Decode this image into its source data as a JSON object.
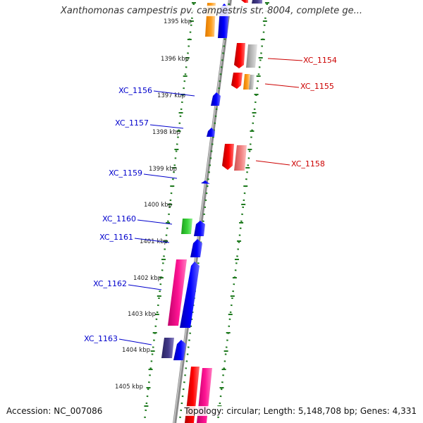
{
  "title": "Xanthomonas campestris pv. campestris str. 8004, complete ge...",
  "accession_label": "Accession: NC_007086",
  "summary_label": "Topology: circular; Length: 5,148,708 bp; Genes: 4,331",
  "colors": {
    "backbone": "#8a8a8a",
    "ring_dots": "#1f7a1f",
    "label_plus": "#cc0000",
    "label_minus": "#0000cc",
    "tick_text": "#222222"
  },
  "tick_labels": [
    "1395 kbp",
    "1396 kbp",
    "1397 kbp",
    "1398 kbp",
    "1399 kbp",
    "1400 kbp",
    "1401 kbp",
    "1402 kbp",
    "1403 kbp",
    "1404 kbp",
    "1405 kbp"
  ],
  "minus_strand_labels": [
    "XC_1156",
    "XC_1157",
    "XC_1159",
    "XC_1160",
    "XC_1161",
    "XC_1162",
    "XC_1163"
  ],
  "plus_strand_labels": [
    "XC_1154",
    "XC_1155",
    "XC_1158"
  ],
  "feature_colors": [
    "orange",
    "blue",
    "red",
    "gray",
    "green",
    "pink",
    "navy"
  ]
}
